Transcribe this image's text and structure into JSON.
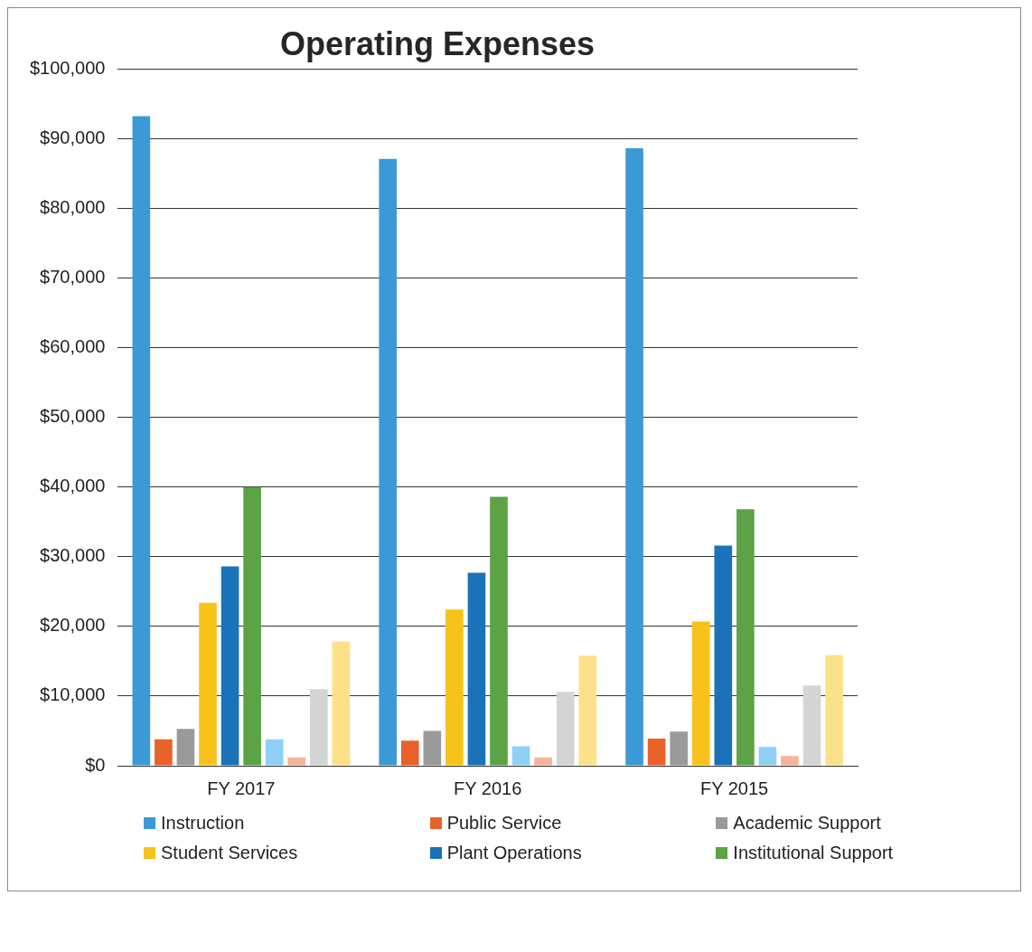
{
  "chart_data": {
    "type": "bar",
    "title": "Operating Expenses",
    "categories": [
      "FY 2017",
      "FY 2016",
      "FY 2015"
    ],
    "series": [
      {
        "name": "Instruction",
        "color": "#3b9ad6",
        "values": [
          93200,
          87100,
          88600
        ]
      },
      {
        "name": "Public Service",
        "color": "#e8622a",
        "values": [
          3800,
          3600,
          3900
        ]
      },
      {
        "name": "Academic Support",
        "color": "#9a9a9a",
        "values": [
          5300,
          5000,
          4900
        ]
      },
      {
        "name": "Student Services",
        "color": "#f7c31a",
        "values": [
          23400,
          22400,
          20700
        ]
      },
      {
        "name": "Plant Operations",
        "color": "#1a72b8",
        "values": [
          28600,
          27700,
          31600
        ]
      },
      {
        "name": "Institutional Support",
        "color": "#5ba344",
        "values": [
          40000,
          38600,
          36800
        ]
      },
      {
        "color": "#8fd0f5",
        "values": [
          3800,
          2800,
          2700
        ]
      },
      {
        "color": "#f5b49a",
        "values": [
          1200,
          1200,
          1400
        ]
      },
      {
        "color": "#d4d4d4",
        "values": [
          11000,
          10600,
          11500
        ]
      },
      {
        "color": "#fde08a",
        "values": [
          17800,
          15800,
          15900
        ]
      }
    ],
    "ylim": [
      0,
      100000
    ],
    "yticks": [
      {
        "value": 0,
        "label": "$0"
      },
      {
        "value": 10000,
        "label": "$10,000"
      },
      {
        "value": 20000,
        "label": "$20,000"
      },
      {
        "value": 30000,
        "label": "$30,000"
      },
      {
        "value": 40000,
        "label": "$40,000"
      },
      {
        "value": 50000,
        "label": "$50,000"
      },
      {
        "value": 60000,
        "label": "$60,000"
      },
      {
        "value": 70000,
        "label": "$70,000"
      },
      {
        "value": 80000,
        "label": "$80,000"
      },
      {
        "value": 90000,
        "label": "$90,000"
      },
      {
        "value": 100000,
        "label": "$100,000"
      }
    ],
    "grid": "y",
    "legend": "bottom"
  }
}
